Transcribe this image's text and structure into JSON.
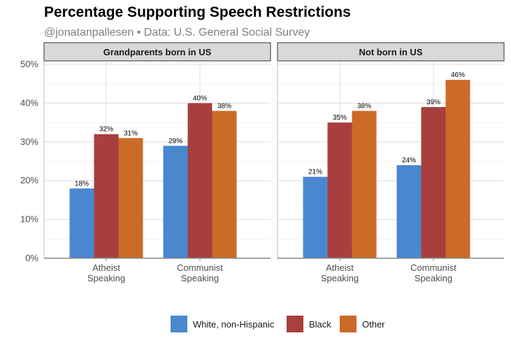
{
  "chart_data": {
    "type": "bar",
    "title": "Percentage Supporting Speech Restrictions",
    "subtitle": "@jonatanpallesen • Data: U.S. General Social Survey",
    "ylim": [
      0,
      50
    ],
    "yticks": [
      "0%",
      "10%",
      "20%",
      "30%",
      "40%",
      "50%"
    ],
    "grid": true,
    "legend_position": "bottom",
    "series_names": [
      "White, non-Hispanic",
      "Black",
      "Other"
    ],
    "colors": [
      "#4a87cf",
      "#a83f3f",
      "#cc6a28"
    ],
    "panels": [
      {
        "strip": "Grandparents born in US",
        "categories": [
          {
            "line1": "Atheist",
            "line2": "Speaking"
          },
          {
            "line1": "Communist",
            "line2": "Speaking"
          }
        ],
        "series": [
          {
            "name": "White, non-Hispanic",
            "values": [
              18,
              29
            ],
            "labels": [
              "18%",
              "29%"
            ]
          },
          {
            "name": "Black",
            "values": [
              32,
              40
            ],
            "labels": [
              "32%",
              "40%"
            ]
          },
          {
            "name": "Other",
            "values": [
              31,
              38
            ],
            "labels": [
              "31%",
              "38%"
            ]
          }
        ]
      },
      {
        "strip": "Not born in US",
        "categories": [
          {
            "line1": "Atheist",
            "line2": "Speaking"
          },
          {
            "line1": "Communist",
            "line2": "Speaking"
          }
        ],
        "series": [
          {
            "name": "White, non-Hispanic",
            "values": [
              21,
              24
            ],
            "labels": [
              "21%",
              "24%"
            ]
          },
          {
            "name": "Black",
            "values": [
              35,
              39
            ],
            "labels": [
              "35%",
              "39%"
            ]
          },
          {
            "name": "Other",
            "values": [
              38,
              46
            ],
            "labels": [
              "38%",
              "46%"
            ]
          }
        ]
      }
    ]
  }
}
